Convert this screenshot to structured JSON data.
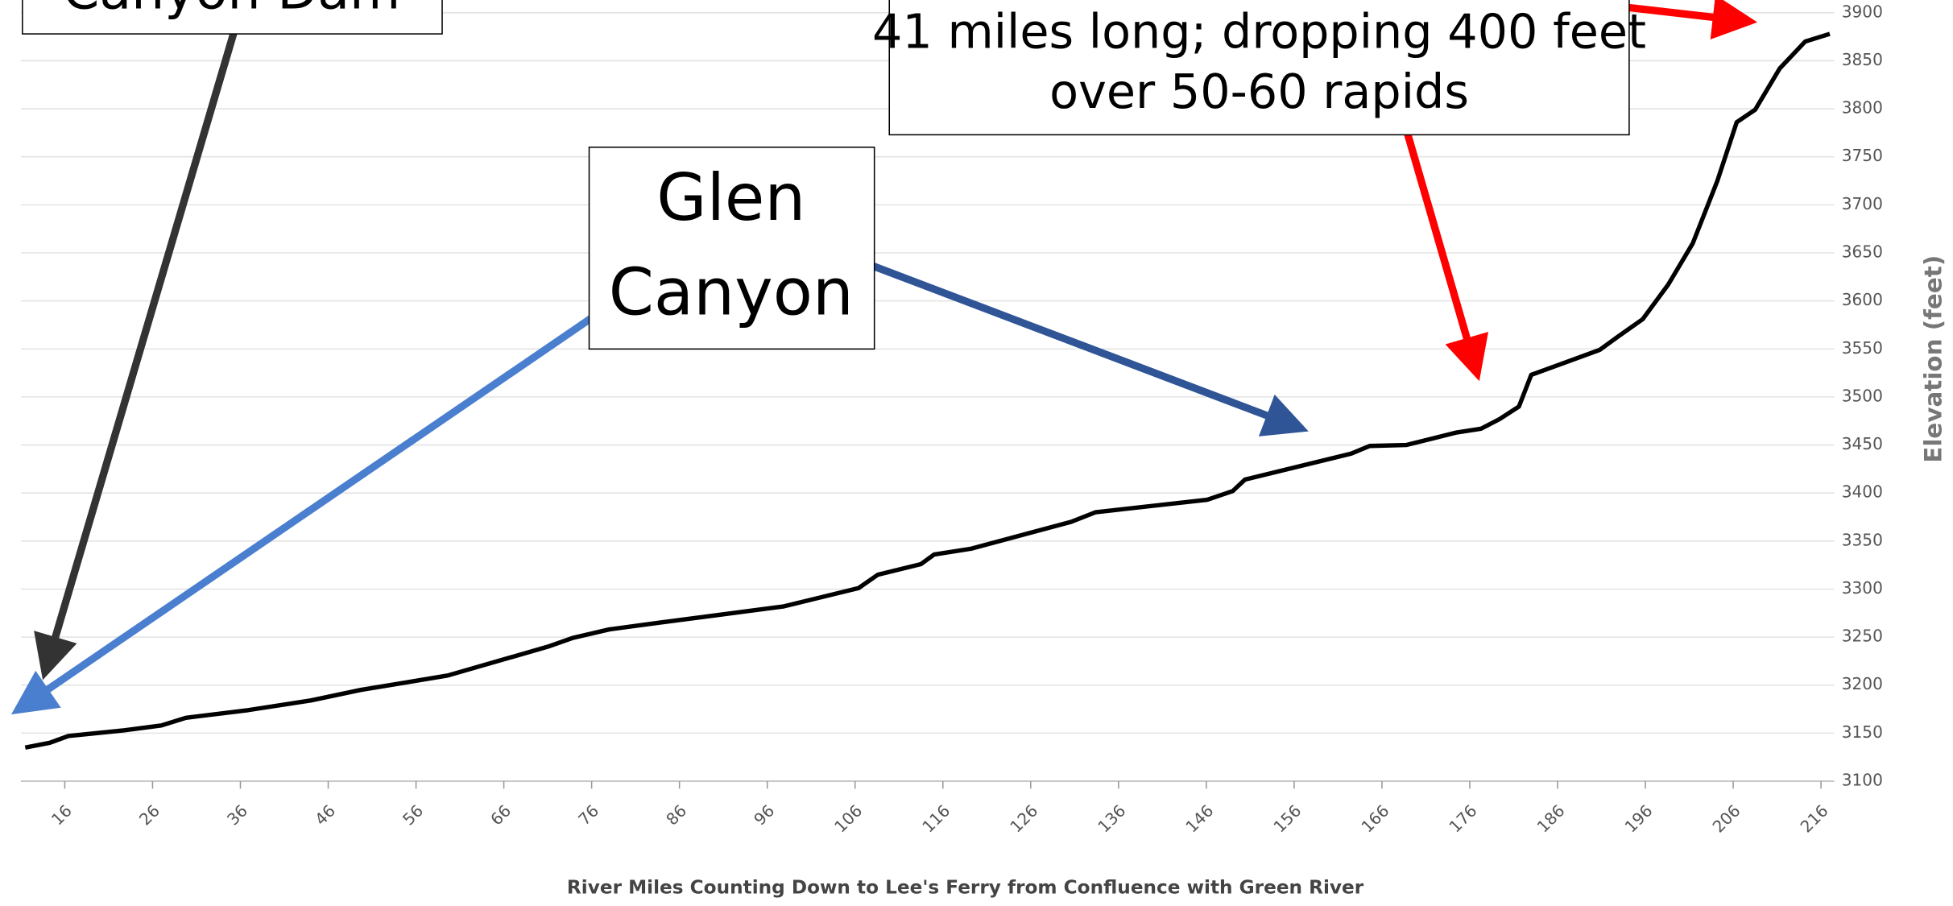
{
  "chart_data": {
    "type": "line",
    "xlabel": "River Miles Counting Down to Lee's Ferry from Confluence with Green River",
    "ylabel": "Elevation (feet)",
    "x": [
      11.5,
      14.3,
      16.4,
      22.8,
      27,
      29.8,
      36.9,
      44,
      49.7,
      59.6,
      71,
      73.8,
      78,
      83.7,
      97.9,
      106.4,
      108.6,
      113.5,
      115,
      119.2,
      130.6,
      133.4,
      146.1,
      149,
      150.4,
      162.5,
      164.6,
      168.8,
      174.5,
      177.3,
      179.4,
      181.6,
      183,
      187.2,
      190.8,
      192.9,
      195.7,
      198.6,
      201.4,
      204.2,
      206.4,
      208.5,
      211.3,
      214.2,
      217
    ],
    "series": [
      {
        "name": "Elevation",
        "color": "#000000",
        "values": [
          3135,
          3140,
          3147,
          3153,
          3158,
          3166,
          3174,
          3184,
          3195,
          3210,
          3240,
          3249,
          3258,
          3265,
          3282,
          3301,
          3315,
          3326,
          3336,
          3342,
          3370,
          3380,
          3393,
          3402,
          3414,
          3441,
          3449,
          3450,
          3463,
          3467,
          3477,
          3490,
          3523,
          3537,
          3549,
          3563,
          3581,
          3617,
          3660,
          3725,
          3786,
          3799,
          3842,
          3870,
          3878
        ]
      }
    ],
    "xlim": [
      11,
      217.5
    ],
    "xticks": [
      16,
      26,
      36,
      46,
      56,
      66,
      76,
      86,
      96,
      106,
      116,
      126,
      136,
      146,
      156,
      166,
      176,
      186,
      196,
      206,
      216
    ],
    "ylim": [
      3100,
      3900
    ],
    "yticks": [
      3100,
      3150,
      3200,
      3250,
      3300,
      3350,
      3400,
      3450,
      3500,
      3550,
      3600,
      3650,
      3700,
      3750,
      3800,
      3850,
      3900
    ],
    "grid": true,
    "annotations": [
      {
        "lines": [
          "Canyon Dam"
        ]
      },
      {
        "lines": [
          "Glen",
          "Canyon"
        ]
      },
      {
        "lines": [
          "41 miles long; dropping 400 feet",
          "over 50-60 rapids"
        ]
      }
    ]
  }
}
